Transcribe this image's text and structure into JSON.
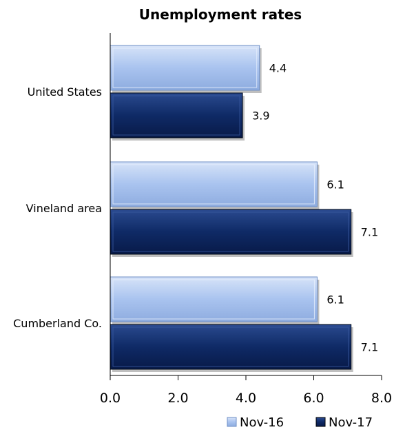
{
  "chart_data": {
    "type": "bar",
    "orientation": "horizontal",
    "title": "Unemployment rates",
    "categories": [
      "United States",
      "Vineland area",
      "Cumberland Co."
    ],
    "series": [
      {
        "name": "Nov-16",
        "values": [
          4.4,
          6.1,
          6.1
        ],
        "color": "#a9c3ef"
      },
      {
        "name": "Nov-17",
        "values": [
          3.9,
          7.1,
          7.1
        ],
        "color": "#0f2a66"
      }
    ],
    "xlim": [
      0,
      8
    ],
    "ticks": [
      0,
      2,
      4,
      6,
      8
    ],
    "tick_labels": [
      "0.0",
      "2.0",
      "4.0",
      "6.0",
      "8.0"
    ],
    "value_labels": [
      [
        "4.4",
        "6.1",
        "6.1"
      ],
      [
        "3.9",
        "7.1",
        "7.1"
      ]
    ],
    "legend_position": "bottom-right",
    "grid": false
  }
}
